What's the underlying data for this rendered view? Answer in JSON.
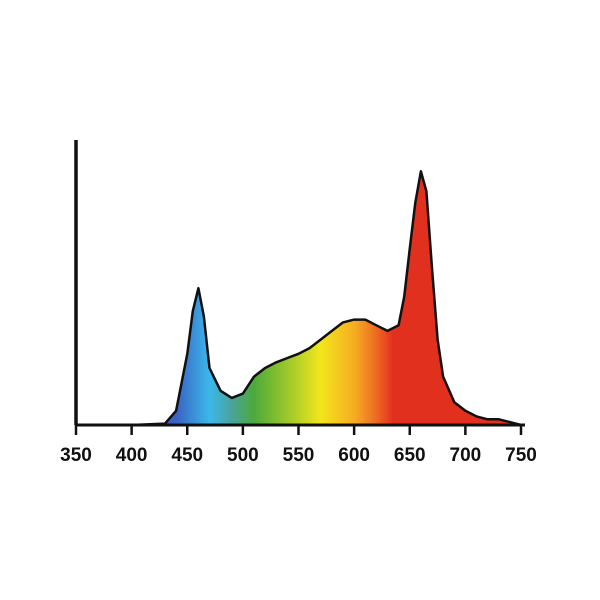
{
  "chart_data": {
    "type": "area",
    "x": [
      350,
      400,
      430,
      440,
      450,
      455,
      460,
      465,
      470,
      480,
      490,
      500,
      510,
      520,
      530,
      540,
      550,
      560,
      570,
      580,
      590,
      600,
      610,
      620,
      630,
      640,
      645,
      650,
      655,
      660,
      665,
      670,
      675,
      680,
      690,
      700,
      710,
      720,
      730,
      740,
      750
    ],
    "values": [
      0,
      0,
      0.005,
      0.05,
      0.25,
      0.4,
      0.48,
      0.38,
      0.2,
      0.12,
      0.095,
      0.11,
      0.17,
      0.2,
      0.22,
      0.235,
      0.25,
      0.27,
      0.3,
      0.33,
      0.36,
      0.37,
      0.37,
      0.35,
      0.33,
      0.35,
      0.45,
      0.62,
      0.78,
      0.89,
      0.82,
      0.55,
      0.3,
      0.17,
      0.08,
      0.05,
      0.03,
      0.02,
      0.02,
      0.01,
      0
    ],
    "color": "#111111",
    "xlim": [
      350,
      750
    ],
    "xticks": [
      350,
      400,
      450,
      500,
      550,
      600,
      650,
      700,
      750
    ],
    "ylim": [
      0,
      1
    ]
  }
}
